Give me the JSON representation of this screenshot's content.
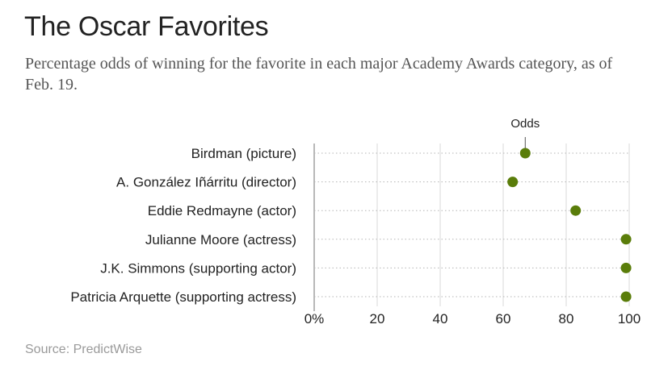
{
  "header": {
    "title": "The Oscar Favorites",
    "subtitle": "Percentage odds of winning for the favorite in each major Academy Awards category, as of Feb. 19."
  },
  "footer": {
    "source": "Source: PredictWise"
  },
  "colors": {
    "dot": "#5a7d0a",
    "axis": "#999999",
    "text": "#222222",
    "muted": "#9a9a9a"
  },
  "chart_data": {
    "type": "scatter",
    "categories": [
      "Birdman (picture)",
      "A. González Iñárritu (director)",
      "Eddie Redmayne (actor)",
      "Julianne Moore (actress)",
      "J.K. Simmons (supporting actor)",
      "Patricia Arquette (supporting actress)"
    ],
    "series": [
      {
        "values": [
          67,
          63,
          83,
          99,
          99,
          99
        ]
      }
    ],
    "xlim": [
      0,
      100
    ],
    "xticks": [
      0,
      20,
      40,
      60,
      80,
      100
    ],
    "xtick_labels": [
      "0%",
      "20",
      "40",
      "60",
      "80",
      "100"
    ],
    "annotation": {
      "label": "Odds",
      "category_index": 0
    },
    "grid": true
  }
}
